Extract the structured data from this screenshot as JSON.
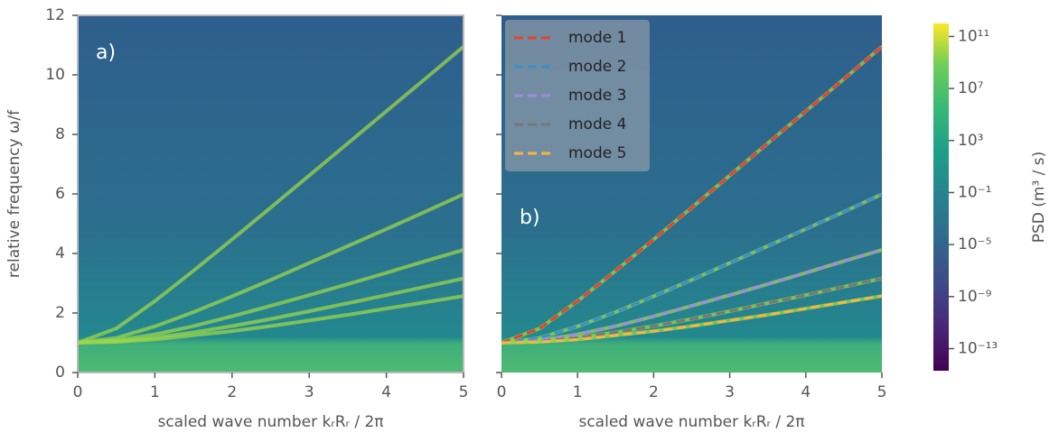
{
  "chart_data": [
    {
      "type": "heatmap",
      "panel_label": "a)",
      "xlabel": "scaled wave number kᵣRᵣ / 2π",
      "ylabel": "relative frequency ω/f",
      "xlim": [
        0,
        5
      ],
      "ylim": [
        0,
        12
      ],
      "xticks": [
        0,
        1,
        2,
        3,
        4,
        5
      ],
      "yticks": [
        0,
        2,
        4,
        6,
        8,
        10,
        12
      ]
    },
    {
      "type": "heatmap",
      "panel_label": "b)",
      "xlabel": "scaled wave number kᵣRᵣ / 2π",
      "xlim": [
        0,
        5
      ],
      "ylim": [
        0,
        12
      ],
      "xticks": [
        0,
        1,
        2,
        3,
        4,
        5
      ],
      "yticks": [
        0,
        2,
        4,
        6,
        8,
        10,
        12
      ],
      "legend": "upper left",
      "x": [
        0,
        0.5,
        1,
        1.5,
        2,
        2.5,
        3,
        3.5,
        4,
        4.5,
        5
      ],
      "series": [
        {
          "name": "mode 1",
          "color": "#e8412c",
          "values": [
            1,
            1.48,
            2.4,
            3.42,
            4.47,
            5.54,
            6.62,
            7.7,
            8.78,
            9.86,
            10.95
          ]
        },
        {
          "name": "mode 2",
          "color": "#3a8fd0",
          "values": [
            1,
            1.16,
            1.55,
            2.03,
            2.56,
            3.11,
            3.68,
            4.25,
            4.82,
            5.4,
            5.99
          ]
        },
        {
          "name": "mode 3",
          "color": "#a08ae0",
          "values": [
            1,
            1.08,
            1.28,
            1.56,
            1.89,
            2.24,
            2.6,
            2.97,
            3.35,
            3.74,
            4.12
          ]
        },
        {
          "name": "mode 4",
          "color": "#777777",
          "values": [
            1,
            1.04,
            1.17,
            1.35,
            1.56,
            1.8,
            2.06,
            2.33,
            2.6,
            2.88,
            3.16
          ]
        },
        {
          "name": "mode 5",
          "color": "#f5b642",
          "values": [
            1,
            1.03,
            1.11,
            1.25,
            1.39,
            1.56,
            1.75,
            1.94,
            2.15,
            2.36,
            2.57
          ]
        }
      ],
      "colorbar": {
        "label": "PSD (m³ / s)",
        "scale": "log",
        "clim": [
          2e-15,
          1000000000000.0
        ],
        "ticks": [
          {
            "value": 100000000000.0,
            "label": "10¹¹"
          },
          {
            "value": 10000000.0,
            "label": "10⁷"
          },
          {
            "value": 1000,
            "label": "10³"
          },
          {
            "value": 0.1,
            "label": "10⁻¹"
          },
          {
            "value": 1e-05,
            "label": "10⁻⁵"
          },
          {
            "value": 1e-09,
            "label": "10⁻⁹"
          },
          {
            "value": 1e-13,
            "label": "10⁻¹³"
          }
        ]
      }
    }
  ]
}
